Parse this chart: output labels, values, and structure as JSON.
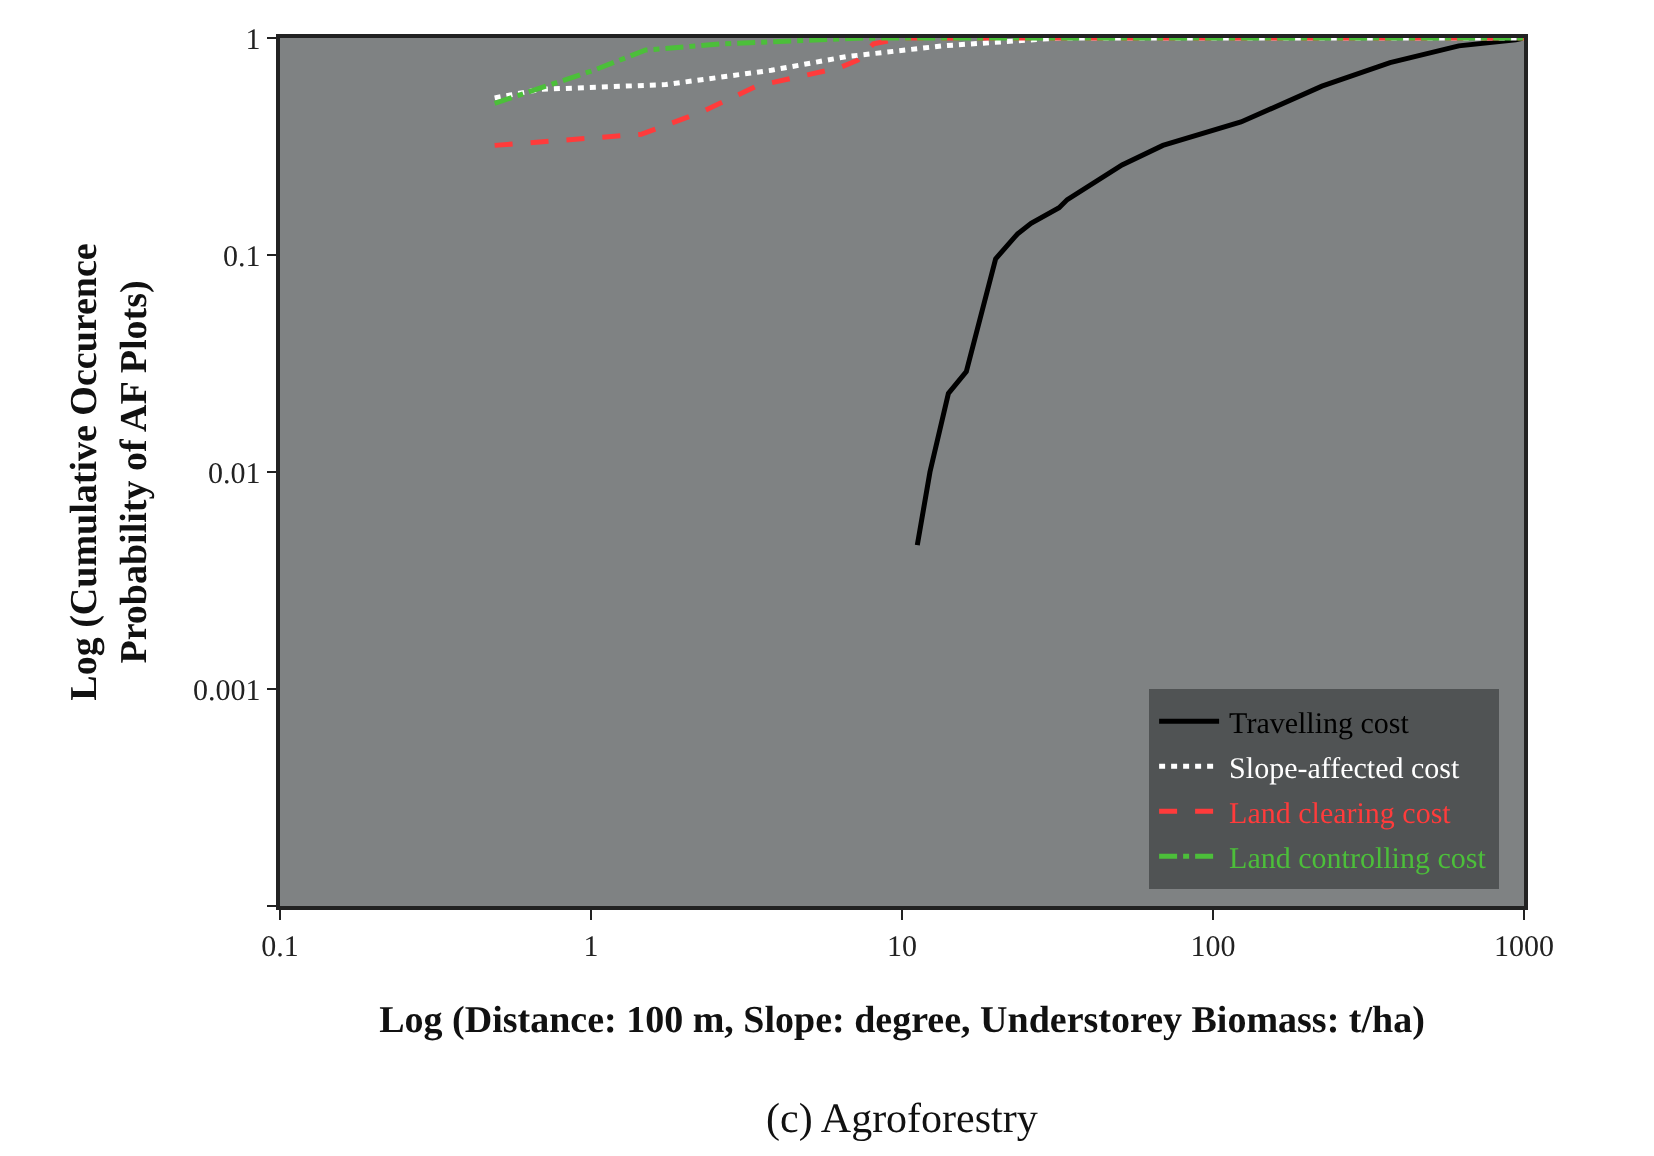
{
  "chart_data": {
    "type": "line",
    "xlabel": "Log (Distance: 100 m, Slope: degree, Understorey Biomass: t/ha)",
    "ylabel": "Log (Cumulative Occurence\nProbability of AF Plots)",
    "annotations": [
      "(c) Agroforestry"
    ],
    "log": "xy",
    "xlim": [
      0.1,
      1000
    ],
    "xticks": [
      0.1,
      1,
      10,
      100,
      1000
    ],
    "ylim": [
      0.0001,
      1
    ],
    "yticks": [
      {
        "value": 0.0001,
        "label": null
      },
      0.001,
      0.01,
      0.1,
      1
    ],
    "grid": false,
    "legend": "bottom right",
    "marker": "none",
    "series": [
      {
        "name": "Travelling cost",
        "color": "#000000",
        "line_style": "solid",
        "x": [
          11.2,
          12.3,
          14.1,
          16.1,
          20,
          23.5,
          26,
          32,
          34,
          51,
          69,
          123,
          224,
          371,
          617,
          940,
          1000
        ],
        "values": [
          0.0046,
          0.01,
          0.023,
          0.029,
          0.096,
          0.125,
          0.14,
          0.165,
          0.18,
          0.26,
          0.32,
          0.41,
          0.6,
          0.77,
          0.92,
          0.98,
          1
        ]
      },
      {
        "name": "Slope-affected cost",
        "color": "#ffffff",
        "line_style": "dotted",
        "x": [
          0.49,
          0.69,
          1.74,
          3.8,
          6.6,
          13.5,
          32,
          1000
        ],
        "values": [
          0.53,
          0.58,
          0.61,
          0.71,
          0.82,
          0.92,
          1,
          1
        ]
      },
      {
        "name": "Land clearing cost",
        "color": "#ff3b3b",
        "line_style": "dashed",
        "x": [
          0.49,
          1.45,
          2.3,
          3.4,
          6.3,
          7.2,
          8.1,
          10,
          1000
        ],
        "values": [
          0.32,
          0.36,
          0.46,
          0.6,
          0.73,
          0.79,
          0.94,
          1,
          1
        ]
      },
      {
        "name": "Land controlling cost",
        "color": "#4cbf3a",
        "line_style": "dashdot",
        "x": [
          0.49,
          1.02,
          1.5,
          2.6,
          7.6,
          1000
        ],
        "values": [
          0.5,
          0.71,
          0.88,
          0.94,
          1,
          1
        ]
      }
    ]
  }
}
